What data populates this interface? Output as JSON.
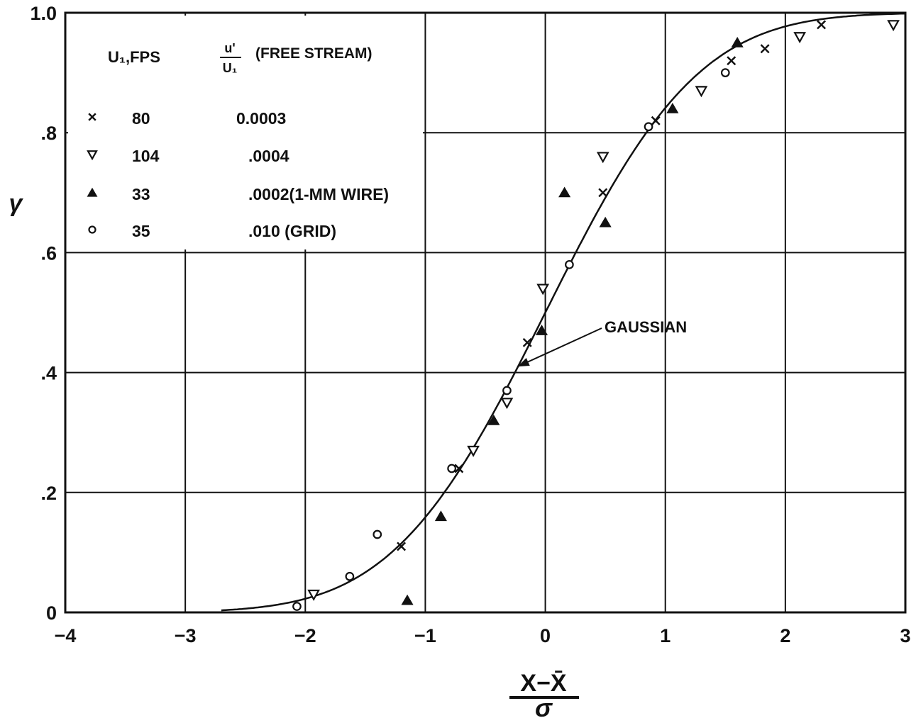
{
  "chart_data": {
    "type": "scatter",
    "title": "",
    "xlabel_top": "X−X̄",
    "xlabel_bottom": "σ",
    "ylabel": "γ",
    "xlim": [
      -4,
      3
    ],
    "ylim": [
      0,
      1.0
    ],
    "x_ticks": [
      {
        "value": -4,
        "label": "−4"
      },
      {
        "value": -3,
        "label": "−3"
      },
      {
        "value": -2,
        "label": "−2"
      },
      {
        "value": -1,
        "label": "−1"
      },
      {
        "value": 0,
        "label": "0"
      },
      {
        "value": 1,
        "label": "1"
      },
      {
        "value": 2,
        "label": "2"
      },
      {
        "value": 3,
        "label": "3"
      }
    ],
    "y_ticks": [
      {
        "value": 0,
        "label": "0"
      },
      {
        "value": 0.2,
        "label": ".2"
      },
      {
        "value": 0.4,
        "label": ".4"
      },
      {
        "value": 0.6,
        "label": ".6"
      },
      {
        "value": 0.8,
        "label": ".8"
      },
      {
        "value": 1.0,
        "label": "1.0"
      }
    ],
    "grid": true,
    "legend": {
      "placement": "top-left",
      "header_col1": "U₁,FPS",
      "header_col2_num": "u'",
      "header_col2_den": "U₁",
      "header_col2_text": "(FREE STREAM)",
      "rows": [
        {
          "marker": "x",
          "speed": "80",
          "intensity": "0.0003"
        },
        {
          "marker": "triangle-down-open",
          "speed": "104",
          "intensity": ".0004"
        },
        {
          "marker": "triangle-up-filled",
          "speed": "33",
          "intensity": ".0002(1-MM WIRE)"
        },
        {
          "marker": "circle-open",
          "speed": "35",
          "intensity": ".010 (GRID)"
        }
      ]
    },
    "curve": {
      "name": "GAUSSIAN",
      "function": "normal_cdf",
      "mean": 0.0,
      "sigma": 1.0,
      "x_range": [
        -2.7,
        3.0
      ]
    },
    "annotation": {
      "text": "GAUSSIAN",
      "points_to": [
        -0.23,
        0.41
      ]
    },
    "series": [
      {
        "marker": "x",
        "points": [
          [
            -1.2,
            0.11
          ],
          [
            -0.72,
            0.24
          ],
          [
            -0.15,
            0.45
          ],
          [
            0.48,
            0.7
          ],
          [
            0.92,
            0.82
          ],
          [
            1.55,
            0.92
          ],
          [
            1.83,
            0.94
          ],
          [
            2.3,
            0.98
          ]
        ]
      },
      {
        "marker": "triangle-down-open",
        "points": [
          [
            -1.93,
            0.03
          ],
          [
            -0.6,
            0.27
          ],
          [
            -0.32,
            0.35
          ],
          [
            -0.02,
            0.54
          ],
          [
            0.48,
            0.76
          ],
          [
            1.3,
            0.87
          ],
          [
            2.12,
            0.96
          ],
          [
            2.9,
            0.98
          ]
        ]
      },
      {
        "marker": "triangle-up-filled",
        "points": [
          [
            -1.15,
            0.02
          ],
          [
            -0.87,
            0.16
          ],
          [
            -0.43,
            0.32
          ],
          [
            -0.03,
            0.47
          ],
          [
            0.16,
            0.7
          ],
          [
            0.5,
            0.65
          ],
          [
            1.06,
            0.84
          ],
          [
            1.6,
            0.95
          ]
        ]
      },
      {
        "marker": "circle-open",
        "points": [
          [
            -2.07,
            0.01
          ],
          [
            -1.63,
            0.06
          ],
          [
            -1.4,
            0.13
          ],
          [
            -0.78,
            0.24
          ],
          [
            -0.32,
            0.37
          ],
          [
            0.2,
            0.58
          ],
          [
            0.86,
            0.81
          ],
          [
            1.5,
            0.9
          ]
        ]
      }
    ]
  }
}
